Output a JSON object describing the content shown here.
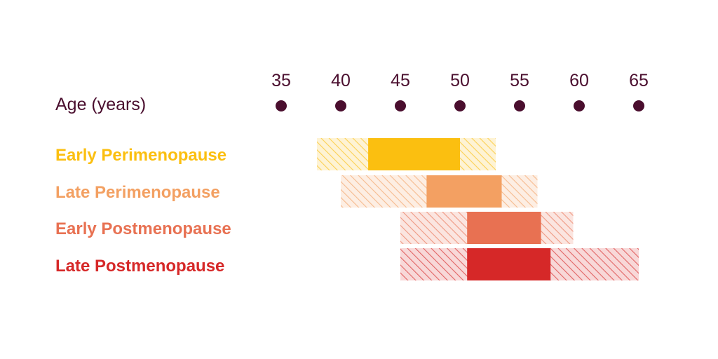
{
  "chart_data": {
    "type": "bar",
    "xlabel": "Age (years)",
    "x_ticks": [
      35,
      40,
      45,
      50,
      55,
      60,
      65
    ],
    "xlim": [
      35,
      65
    ],
    "grid": false,
    "legend": "none",
    "series": [
      {
        "name": "Early Perimenopause",
        "range_start": 38,
        "core_start": 42.3,
        "core_end": 50,
        "range_end": 53,
        "color": "#fbbf10"
      },
      {
        "name": "Late Perimenopause",
        "range_start": 40,
        "core_start": 47.2,
        "core_end": 53.5,
        "range_end": 56.5,
        "color": "#f3a062"
      },
      {
        "name": "Early Postmenopause",
        "range_start": 45,
        "core_start": 50.6,
        "core_end": 56.8,
        "range_end": 59.5,
        "color": "#e87152"
      },
      {
        "name": "Late Postmenopause",
        "range_start": 45,
        "core_start": 50.6,
        "core_end": 57.6,
        "range_end": 65,
        "color": "#d62828"
      }
    ]
  },
  "colors": {
    "axis_text": "#4a0e2e",
    "dot": "#4a0e2e"
  }
}
